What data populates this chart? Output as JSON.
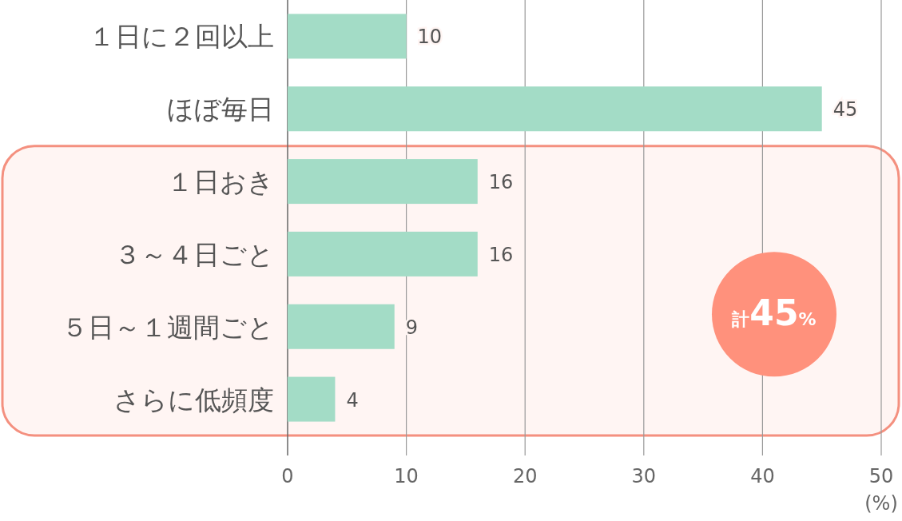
{
  "chart_data": {
    "type": "bar",
    "orientation": "horizontal",
    "categories": [
      "１日に２回以上",
      "ほぼ毎日",
      "１日おき",
      "３～４日ごと",
      "５日～１週間ごと",
      "さらに低頻度"
    ],
    "values": [
      10,
      45,
      16,
      16,
      9,
      4
    ],
    "color": "#a3dcc6",
    "xlim": [
      0,
      50
    ],
    "xticks": [
      0,
      10,
      20,
      30,
      40,
      50
    ],
    "xlabel": "(%)",
    "grid": "x",
    "data_labels": true,
    "bands": [
      {
        "axis": "y",
        "from": "１日おき",
        "to": "さらに低頻度",
        "label": "計45%",
        "color": "#f4907f"
      }
    ]
  }
}
